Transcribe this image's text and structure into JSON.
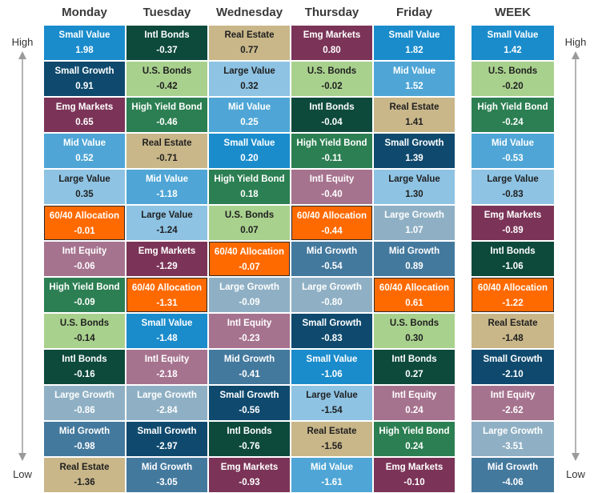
{
  "side_labels": {
    "high": "High",
    "low": "Low"
  },
  "chart_data": {
    "type": "table",
    "columns": [
      {
        "header": "Monday",
        "cells": [
          {
            "name": "Small Value",
            "value": "1.98"
          },
          {
            "name": "Small Growth",
            "value": "0.91"
          },
          {
            "name": "Emg Markets",
            "value": "0.65"
          },
          {
            "name": "Mid Value",
            "value": "0.52"
          },
          {
            "name": "Large Value",
            "value": "0.35"
          },
          {
            "name": "60/40 Allocation",
            "value": "-0.01"
          },
          {
            "name": "Intl Equity",
            "value": "-0.06"
          },
          {
            "name": "High Yield Bond",
            "value": "-0.09"
          },
          {
            "name": "U.S. Bonds",
            "value": "-0.14"
          },
          {
            "name": "Intl Bonds",
            "value": "-0.16"
          },
          {
            "name": "Large Growth",
            "value": "-0.86"
          },
          {
            "name": "Mid Growth",
            "value": "-0.98"
          },
          {
            "name": "Real Estate",
            "value": "-1.36"
          }
        ]
      },
      {
        "header": "Tuesday",
        "cells": [
          {
            "name": "Intl Bonds",
            "value": "-0.37"
          },
          {
            "name": "U.S. Bonds",
            "value": "-0.42"
          },
          {
            "name": "High Yield Bond",
            "value": "-0.46"
          },
          {
            "name": "Real Estate",
            "value": "-0.71"
          },
          {
            "name": "Mid Value",
            "value": "-1.18"
          },
          {
            "name": "Large Value",
            "value": "-1.24"
          },
          {
            "name": "Emg Markets",
            "value": "-1.29"
          },
          {
            "name": "60/40 Allocation",
            "value": "-1.31"
          },
          {
            "name": "Small Value",
            "value": "-1.48"
          },
          {
            "name": "Intl Equity",
            "value": "-2.18"
          },
          {
            "name": "Large Growth",
            "value": "-2.84"
          },
          {
            "name": "Small Growth",
            "value": "-2.97"
          },
          {
            "name": "Mid Growth",
            "value": "-3.05"
          }
        ]
      },
      {
        "header": "Wednesday",
        "cells": [
          {
            "name": "Real Estate",
            "value": "0.77"
          },
          {
            "name": "Large Value",
            "value": "0.32"
          },
          {
            "name": "Mid Value",
            "value": "0.25"
          },
          {
            "name": "Small Value",
            "value": "0.20"
          },
          {
            "name": "High Yield Bond",
            "value": "0.18"
          },
          {
            "name": "U.S. Bonds",
            "value": "0.07"
          },
          {
            "name": "60/40 Allocation",
            "value": "-0.07"
          },
          {
            "name": "Large Growth",
            "value": "-0.09"
          },
          {
            "name": "Intl Equity",
            "value": "-0.23"
          },
          {
            "name": "Mid Growth",
            "value": "-0.41"
          },
          {
            "name": "Small Growth",
            "value": "-0.56"
          },
          {
            "name": "Intl Bonds",
            "value": "-0.76"
          },
          {
            "name": "Emg Markets",
            "value": "-0.93"
          }
        ]
      },
      {
        "header": "Thursday",
        "cells": [
          {
            "name": "Emg Markets",
            "value": "0.80"
          },
          {
            "name": "U.S. Bonds",
            "value": "-0.02"
          },
          {
            "name": "Intl Bonds",
            "value": "-0.04"
          },
          {
            "name": "High Yield Bond",
            "value": "-0.11"
          },
          {
            "name": "Intl Equity",
            "value": "-0.40"
          },
          {
            "name": "60/40 Allocation",
            "value": "-0.44"
          },
          {
            "name": "Mid Growth",
            "value": "-0.54"
          },
          {
            "name": "Large Growth",
            "value": "-0.80"
          },
          {
            "name": "Small Growth",
            "value": "-0.83"
          },
          {
            "name": "Small Value",
            "value": "-1.06"
          },
          {
            "name": "Large Value",
            "value": "-1.54"
          },
          {
            "name": "Real Estate",
            "value": "-1.56"
          },
          {
            "name": "Mid Value",
            "value": "-1.61"
          }
        ]
      },
      {
        "header": "Friday",
        "cells": [
          {
            "name": "Small Value",
            "value": "1.82"
          },
          {
            "name": "Mid Value",
            "value": "1.52"
          },
          {
            "name": "Real Estate",
            "value": "1.41"
          },
          {
            "name": "Small Growth",
            "value": "1.39"
          },
          {
            "name": "Large Value",
            "value": "1.30"
          },
          {
            "name": "Large Growth",
            "value": "1.07"
          },
          {
            "name": "Mid Growth",
            "value": "0.89"
          },
          {
            "name": "60/40 Allocation",
            "value": "0.61"
          },
          {
            "name": "U.S. Bonds",
            "value": "0.30"
          },
          {
            "name": "Intl Bonds",
            "value": "0.27"
          },
          {
            "name": "Intl Equity",
            "value": "0.24"
          },
          {
            "name": "High Yield Bond",
            "value": "0.24"
          },
          {
            "name": "Emg Markets",
            "value": "-0.10"
          }
        ]
      },
      {
        "header": "WEEK",
        "cells": [
          {
            "name": "Small Value",
            "value": "1.42"
          },
          {
            "name": "U.S. Bonds",
            "value": "-0.20"
          },
          {
            "name": "High Yield Bond",
            "value": "-0.24"
          },
          {
            "name": "Mid Value",
            "value": "-0.53"
          },
          {
            "name": "Large Value",
            "value": "-0.83"
          },
          {
            "name": "Emg Markets",
            "value": "-0.89"
          },
          {
            "name": "Intl Bonds",
            "value": "-1.06"
          },
          {
            "name": "60/40 Allocation",
            "value": "-1.22"
          },
          {
            "name": "Real Estate",
            "value": "-1.48"
          },
          {
            "name": "Small Growth",
            "value": "-2.10"
          },
          {
            "name": "Intl Equity",
            "value": "-2.62"
          },
          {
            "name": "Large Growth",
            "value": "-3.51"
          },
          {
            "name": "Mid Growth",
            "value": "-4.06"
          }
        ]
      }
    ],
    "asset_colors": {
      "Small Value": "#1a8ccc",
      "Small Growth": "#0f4a6e",
      "Emg Markets": "#7b3458",
      "Mid Value": "#4fa6d6",
      "Large Value": "#8ec3e3",
      "60/40 Allocation": "#ff6a00",
      "Intl Equity": "#a6738f",
      "High Yield Bond": "#2c7f52",
      "U.S. Bonds": "#a9d18e",
      "Intl Bonds": "#0d4a3c",
      "Large Growth": "#8fb0c4",
      "Mid Growth": "#44799e",
      "Real Estate": "#c9b78a"
    }
  }
}
